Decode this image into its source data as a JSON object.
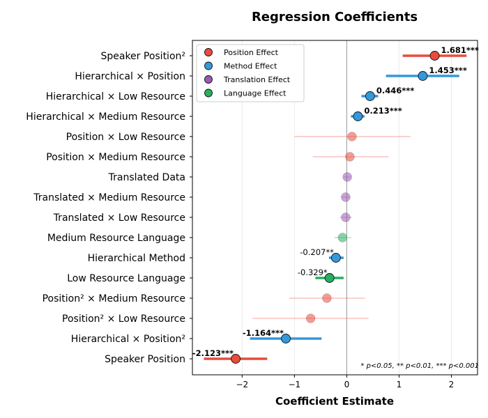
{
  "chart_data": {
    "type": "scatter",
    "title": "Regression Coefficients",
    "xlabel": "Coefficient Estimate",
    "ylabel": "",
    "xlim": [
      -2.95,
      2.5
    ],
    "xticks": [
      -2,
      -1,
      0,
      1,
      2
    ],
    "xtick_labels": [
      "−2",
      "−1",
      "0",
      "1",
      "2"
    ],
    "grid": "vertical",
    "legend_position": "top-left",
    "legend": [
      {
        "name": "Position Effect",
        "color": "#e74c3c"
      },
      {
        "name": "Method Effect",
        "color": "#3498db"
      },
      {
        "name": "Translation Effect",
        "color": "#9b59b6"
      },
      {
        "name": "Language Effect",
        "color": "#27ae60"
      }
    ],
    "footnote": "* p<0.05, ** p<0.01, *** p<0.001",
    "points": [
      {
        "label": "Speaker Position²",
        "estimate": 1.681,
        "ci": [
          1.07,
          2.29
        ],
        "color": "#e74c3c",
        "significant": true,
        "value_label": "1.681***"
      },
      {
        "label": "Hierarchical × Position",
        "estimate": 1.453,
        "ci": [
          0.75,
          2.15
        ],
        "color": "#3498db",
        "significant": true,
        "value_label": "1.453***"
      },
      {
        "label": "Hierarchical × Low Resource",
        "estimate": 0.446,
        "ci": [
          0.28,
          0.6
        ],
        "color": "#3498db",
        "significant": true,
        "value_label": "0.446***"
      },
      {
        "label": "Hierarchical × Medium Resource",
        "estimate": 0.213,
        "ci": [
          0.08,
          0.34
        ],
        "color": "#3498db",
        "significant": true,
        "value_label": "0.213***"
      },
      {
        "label": "Position × Low Resource",
        "estimate": 0.1,
        "ci": [
          -1.0,
          1.22
        ],
        "color": "#e74c3c",
        "significant": false,
        "value_label": ""
      },
      {
        "label": "Position × Medium Resource",
        "estimate": 0.06,
        "ci": [
          -0.65,
          0.8
        ],
        "color": "#e74c3c",
        "significant": false,
        "value_label": ""
      },
      {
        "label": "Translated Data",
        "estimate": 0.01,
        "ci": [
          -0.05,
          0.07
        ],
        "color": "#9b59b6",
        "significant": false,
        "value_label": ""
      },
      {
        "label": "Translated × Medium Resource",
        "estimate": -0.02,
        "ci": [
          -0.1,
          0.06
        ],
        "color": "#9b59b6",
        "significant": false,
        "value_label": ""
      },
      {
        "label": "Translated × Low Resource",
        "estimate": -0.02,
        "ci": [
          -0.13,
          0.1
        ],
        "color": "#9b59b6",
        "significant": false,
        "value_label": ""
      },
      {
        "label": "Medium Resource Language",
        "estimate": -0.08,
        "ci": [
          -0.24,
          0.09
        ],
        "color": "#27ae60",
        "significant": false,
        "value_label": ""
      },
      {
        "label": "Hierarchical Method",
        "estimate": -0.207,
        "ci": [
          -0.34,
          -0.06
        ],
        "color": "#3498db",
        "significant": true,
        "value_label": "-0.207**"
      },
      {
        "label": "Low Resource Language",
        "estimate": -0.329,
        "ci": [
          -0.6,
          -0.06
        ],
        "color": "#27ae60",
        "significant": true,
        "value_label": "-0.329*"
      },
      {
        "label": "Position² × Medium Resource",
        "estimate": -0.38,
        "ci": [
          -1.1,
          0.35
        ],
        "color": "#e74c3c",
        "significant": false,
        "value_label": ""
      },
      {
        "label": "Position² × Low Resource",
        "estimate": -0.69,
        "ci": [
          -1.8,
          0.42
        ],
        "color": "#e74c3c",
        "significant": false,
        "value_label": ""
      },
      {
        "label": "Hierarchical × Position²",
        "estimate": -1.164,
        "ci": [
          -1.85,
          -0.48
        ],
        "color": "#3498db",
        "significant": true,
        "value_label": "-1.164***"
      },
      {
        "label": "Speaker Position",
        "estimate": -2.123,
        "ci": [
          -2.73,
          -1.52
        ],
        "color": "#e74c3c",
        "significant": true,
        "value_label": "-2.123***"
      }
    ]
  }
}
